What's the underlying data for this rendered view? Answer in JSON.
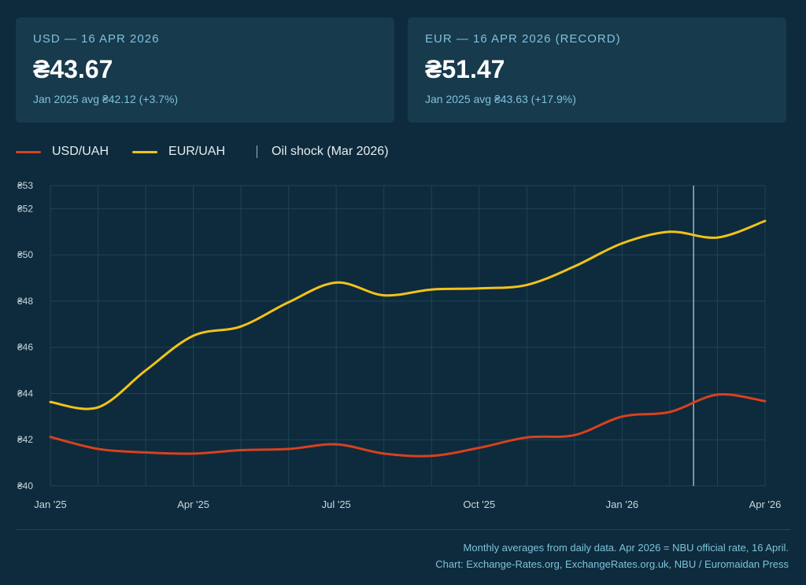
{
  "cards": [
    {
      "label": "USD — 16 APR 2026",
      "value": "₴43.67",
      "sub": "Jan 2025 avg ₴42.12  (+3.7%)"
    },
    {
      "label": "EUR — 16 APR 2026 (RECORD)",
      "value": "₴51.47",
      "sub": "Jan 2025 avg ₴43.63  (+17.9%)"
    }
  ],
  "legend": {
    "usd": "USD/UAH",
    "eur": "EUR/UAH",
    "oil": "Oil shock (Mar 2026)"
  },
  "colors": {
    "usd": "#d9401f",
    "eur": "#f2c21b",
    "marker": "#9fb3be",
    "grid": "#1f4356",
    "tick_text": "#c9d6dd"
  },
  "footer": {
    "line1": "Monthly averages from daily data. Apr 2026 = NBU official rate, 16 April.",
    "line2": "Chart: Exchange-Rates.org, ExchangeRates.org.uk, NBU / Euromaidan Press"
  },
  "chart_data": {
    "type": "line",
    "x": [
      "Jan 2025",
      "Feb 2025",
      "Mar 2025",
      "Apr 2025",
      "May 2025",
      "Jun 2025",
      "Jul 2025",
      "Aug 2025",
      "Sep 2025",
      "Oct 2025",
      "Nov 2025",
      "Dec 2025",
      "Jan 2026",
      "Feb 2026",
      "Mar 2026",
      "Apr 2026"
    ],
    "x_tick_labels": [
      {
        "index": 0,
        "label": "Jan '25"
      },
      {
        "index": 3,
        "label": "Apr '25"
      },
      {
        "index": 6,
        "label": "Jul '25"
      },
      {
        "index": 9,
        "label": "Oct '25"
      },
      {
        "index": 12,
        "label": "Jan '26"
      },
      {
        "index": 15,
        "label": "Apr '26"
      }
    ],
    "y_ticks": [
      {
        "value": 40,
        "label": "₴40"
      },
      {
        "value": 42,
        "label": "₴42"
      },
      {
        "value": 44,
        "label": "₴44"
      },
      {
        "value": 46,
        "label": "₴46"
      },
      {
        "value": 48,
        "label": "₴48"
      },
      {
        "value": 50,
        "label": "₴50"
      },
      {
        "value": 52,
        "label": "₴52"
      },
      {
        "value": 53,
        "label": "₴53"
      }
    ],
    "ylim": [
      40,
      53
    ],
    "series": [
      {
        "name": "USD/UAH",
        "values": [
          42.12,
          41.6,
          41.45,
          41.4,
          41.55,
          41.6,
          41.8,
          41.4,
          41.3,
          41.65,
          42.1,
          42.2,
          43.0,
          43.2,
          43.95,
          43.67
        ]
      },
      {
        "name": "EUR/UAH",
        "values": [
          43.63,
          43.4,
          45.0,
          46.5,
          46.9,
          47.95,
          48.8,
          48.25,
          48.5,
          48.55,
          48.7,
          49.5,
          50.5,
          51.0,
          50.75,
          51.47
        ]
      }
    ],
    "annotation": {
      "label": "Oil shock (Mar 2026)",
      "x_index": 13.5
    },
    "grid": true,
    "legend_position": "top-left"
  }
}
